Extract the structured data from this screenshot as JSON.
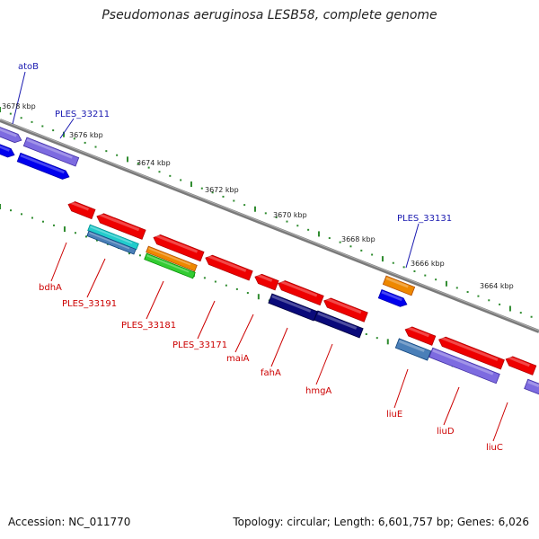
{
  "title": "Pseudomonas aeruginosa LESB58, complete genome",
  "footer": {
    "accession": "Accession: NC_011770",
    "summary": "Topology: circular; Length: 6,601,757 bp; Genes: 6,026"
  },
  "colors": {
    "backbone": "#808080",
    "tick": "#2e8b2e",
    "label_forward": "#1a1ab0",
    "label_reverse": "#cc0000",
    "scale_text": "#222222"
  },
  "scale_labels": [
    "3678 kbp",
    "3676 kbp",
    "3674 kbp",
    "3672 kbp",
    "3670 kbp",
    "3668 kbp",
    "3666 kbp",
    "3664 kbp"
  ],
  "gene_labels": {
    "forward": [
      "atoB",
      "PLES_33211",
      "PLES_33131"
    ],
    "reverse": [
      "bdhA",
      "PLES_33191",
      "PLES_33181",
      "PLES_33171",
      "maiA",
      "fahA",
      "hmgA",
      "liuE",
      "liuD",
      "liuC"
    ]
  },
  "feature_colors": {
    "red": "#ee0000",
    "blue": "#0000ee",
    "purple": "#7d6be0",
    "navy": "#0a0a7a",
    "cyan": "#22cccc",
    "steel": "#4a7fb8",
    "orange": "#ee8800",
    "green": "#33cc33"
  }
}
